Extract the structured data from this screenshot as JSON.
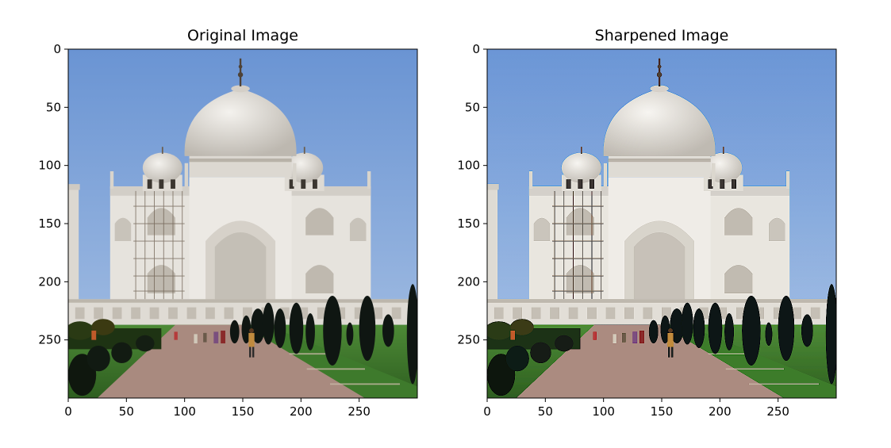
{
  "figure": {
    "panels": [
      {
        "title": "Original Image",
        "variant": "original"
      },
      {
        "title": "Sharpened Image",
        "variant": "sharpened"
      }
    ],
    "axis": {
      "x_ticks": [
        "0",
        "50",
        "100",
        "150",
        "200",
        "250"
      ],
      "y_ticks": [
        "0",
        "50",
        "100",
        "150",
        "200",
        "250"
      ],
      "x_tick_values": [
        0,
        50,
        100,
        150,
        200,
        250
      ],
      "y_tick_values": [
        0,
        50,
        100,
        150,
        200,
        250
      ],
      "xlim": [
        0,
        300
      ],
      "ylim": [
        300,
        0
      ]
    },
    "colors": {
      "sky_top": "#6a94d3",
      "sky_bottom": "#a9c2e4",
      "marble": "#e8e6e1",
      "marble_shadow": "#c9c5be",
      "lawn": "#3f7a2c",
      "path": "#a98a7f",
      "cypress": "#111a14"
    }
  }
}
